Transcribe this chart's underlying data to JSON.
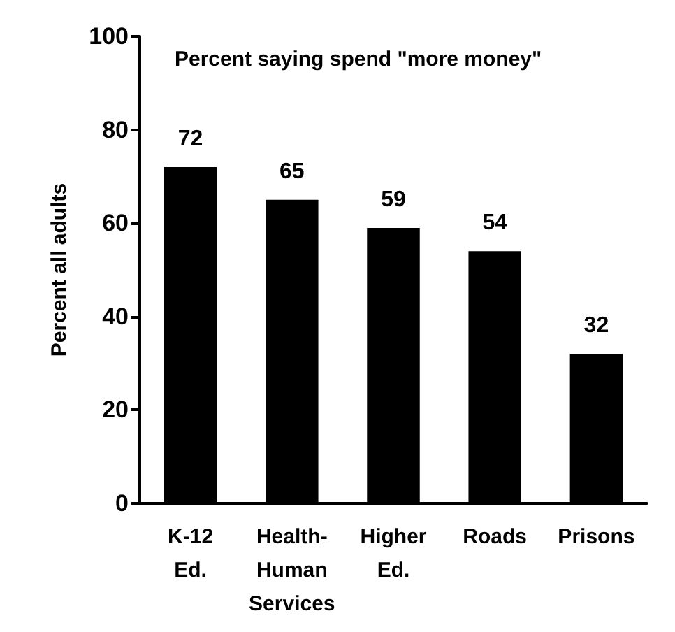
{
  "chart_data": {
    "type": "bar",
    "title": "Percent saying spend \"more money\"",
    "ylabel": "Percent all adults",
    "categories": [
      "K-12\nEd.",
      "Health-\nHuman\nServices",
      "Higher\nEd.",
      "Roads",
      "Prisons"
    ],
    "values": [
      72,
      65,
      59,
      54,
      32
    ],
    "color": "#000000",
    "ylim": [
      0,
      100
    ],
    "yticks": [
      0,
      20,
      40,
      60,
      80,
      100
    ],
    "grid": false,
    "data_labels": true
  }
}
